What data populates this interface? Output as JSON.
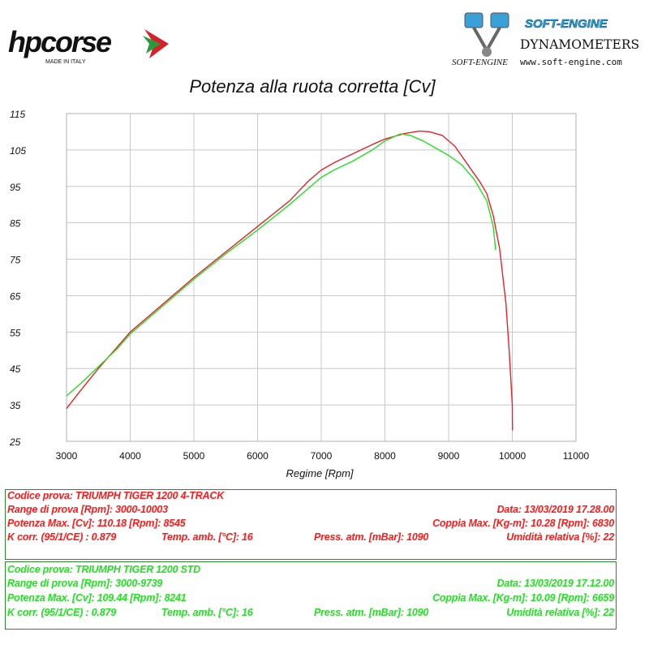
{
  "header": {
    "logo_left": "hpcorse",
    "logo_left_sub": "MADE IN ITALY",
    "logo_right_title": "SOFT-ENGINE",
    "logo_right_sub": "DYNAMOMETERS",
    "logo_right_url": "www.soft-engine.com",
    "logo_right_mark": "SOFT-ENGINE"
  },
  "chart_data": {
    "type": "line",
    "title": "Potenza alla ruota corretta [Cv]",
    "xlabel": "Regime [Rpm]",
    "ylabel": "",
    "xlim": [
      3000,
      11000
    ],
    "ylim": [
      25,
      115
    ],
    "xticks": [
      3000,
      4000,
      5000,
      6000,
      7000,
      8000,
      9000,
      10000,
      11000
    ],
    "yticks": [
      25,
      35,
      45,
      55,
      65,
      75,
      85,
      95,
      105,
      115
    ],
    "grid": true,
    "series": [
      {
        "color": "#e8202a",
        "x": [
          3000,
          3200,
          3500,
          3800,
          4000,
          4500,
          5000,
          5500,
          6000,
          6500,
          6800,
          7000,
          7200,
          7500,
          7800,
          8000,
          8300,
          8545,
          8700,
          8900,
          9100,
          9300,
          9500,
          9600,
          9700,
          9800,
          9900,
          9950,
          10000,
          10003
        ],
        "y": [
          34,
          38.5,
          45,
          51,
          55,
          62.5,
          70,
          77,
          84,
          91,
          96.5,
          99.5,
          101.5,
          104,
          106.5,
          108,
          109.5,
          110.18,
          110,
          109,
          106,
          101,
          96,
          93,
          87,
          78,
          63,
          50,
          35,
          28
        ]
      },
      {
        "color": "#22e022",
        "x": [
          3000,
          3200,
          3500,
          3800,
          4000,
          4500,
          5000,
          5500,
          6000,
          6500,
          6800,
          7000,
          7200,
          7500,
          7800,
          8000,
          8241,
          8400,
          8600,
          8800,
          9000,
          9200,
          9400,
          9600,
          9700,
          9739
        ],
        "y": [
          37.5,
          40.5,
          45.5,
          50.5,
          54.5,
          62,
          69.5,
          76.5,
          83,
          90,
          94.5,
          97.5,
          99.5,
          102,
          105,
          107.5,
          109.44,
          109,
          107.5,
          105.5,
          103.5,
          101,
          97,
          91,
          84,
          77.5
        ]
      }
    ]
  },
  "info_red": {
    "codice": "Codice prova: TRIUMPH TIGER 1200 4-TRACK",
    "range": "Range di prova [Rpm]: 3000-10003",
    "data": "Data: 13/03/2019   17.28.00",
    "potenza": "Potenza Max. [Cv]: 110.18   [Rpm]: 8545",
    "coppia": "Coppia Max. [Kg-m]: 10.28   [Rpm]: 6830",
    "kcorr": "K corr. (95/1/CE) : 0.879",
    "temp": "Temp. amb. [°C]: 16",
    "press": "Press. atm. [mBar]: 1090",
    "umid": "Umidità relativa [%]: 22"
  },
  "info_green": {
    "codice": "Codice prova: TRIUMPH TIGER 1200 STD",
    "range": "Range di prova [Rpm]: 3000-9739",
    "data": "Data: 13/03/2019   17.12.00",
    "potenza": "Potenza Max. [Cv]: 109.44   [Rpm]: 8241",
    "coppia": "Coppia Max. [Kg-m]: 10.09   [Rpm]: 6659",
    "kcorr": "K corr. (95/1/CE) : 0.879",
    "temp": "Temp. amb. [°C]: 16",
    "press": "Press. atm. [mBar]: 1090",
    "umid": "Umidità relativa [%]: 22"
  }
}
